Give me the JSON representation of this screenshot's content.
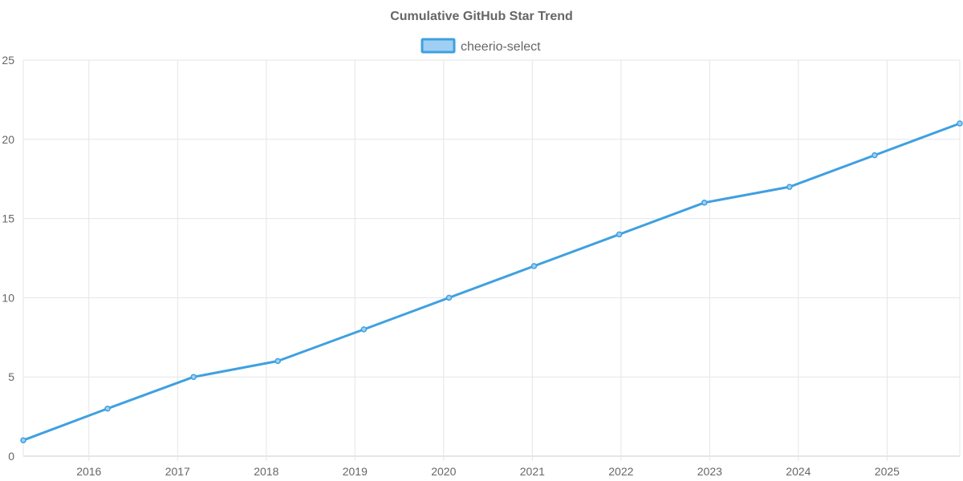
{
  "chart_data": {
    "type": "line",
    "title": "Cumulative GitHub Star Trend",
    "xlabel": "",
    "ylabel": "",
    "legend_position": "top-center",
    "grid": true,
    "x_tick_labels": [
      "2016",
      "2017",
      "2018",
      "2019",
      "2020",
      "2021",
      "2022",
      "2023",
      "2024",
      "2025"
    ],
    "x_tick_values": [
      2016,
      2017,
      2018,
      2019,
      2020,
      2021,
      2022,
      2023,
      2024,
      2025
    ],
    "y_tick_labels": [
      "0",
      "5",
      "10",
      "15",
      "20",
      "25"
    ],
    "y_tick_values": [
      0,
      5,
      10,
      15,
      20,
      25
    ],
    "xlim": [
      2015.26,
      2025.82
    ],
    "ylim": [
      0,
      25
    ],
    "series": [
      {
        "name": "cheerio-select",
        "color": "#3fa0e0",
        "fill_color": "#9fd0f4",
        "x": [
          2015.26,
          2016.21,
          2017.18,
          2018.13,
          2019.1,
          2020.06,
          2021.02,
          2021.98,
          2022.94,
          2023.9,
          2024.86,
          2025.82
        ],
        "values": [
          1,
          3,
          5,
          6,
          8,
          10,
          12,
          14,
          16,
          17,
          19,
          21
        ]
      }
    ]
  }
}
